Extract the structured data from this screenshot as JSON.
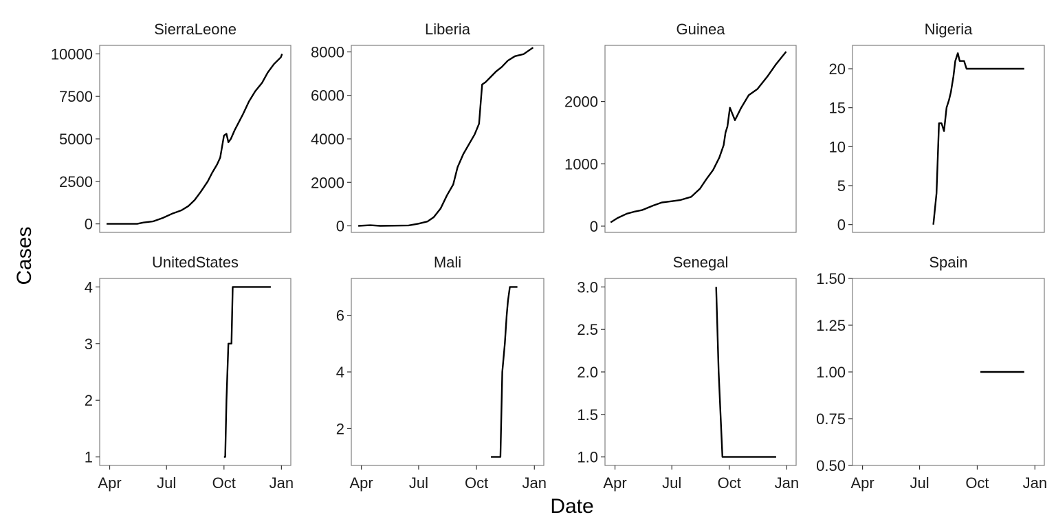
{
  "chart_data": {
    "type": "line",
    "layout": "facet-grid",
    "xlabel": "Date",
    "ylabel": "Cases",
    "x_ticks": [
      "Apr",
      "Jul",
      "Oct",
      "Jan"
    ],
    "x_tick_dates": [
      "2014-04-01",
      "2014-07-01",
      "2014-10-01",
      "2015-01-01"
    ],
    "xlim": [
      "2014-03-16",
      "2015-01-16"
    ],
    "grid": false,
    "legend": "none",
    "line_color": "#000000",
    "panels": [
      {
        "name": "SierraLeone",
        "ylim": [
          -500,
          10500
        ],
        "y_ticks": [
          0,
          2500,
          5000,
          7500,
          10000
        ],
        "y_tick_labels": [
          "0",
          "2500",
          "5000",
          "7500",
          "10000"
        ],
        "x": [
          "2014-03-27",
          "2014-05-15",
          "2014-05-25",
          "2014-06-10",
          "2014-06-25",
          "2014-07-10",
          "2014-07-25",
          "2014-08-05",
          "2014-08-15",
          "2014-08-25",
          "2014-09-05",
          "2014-09-12",
          "2014-09-20",
          "2014-09-25",
          "2014-10-01",
          "2014-10-05",
          "2014-10-08",
          "2014-10-12",
          "2014-10-18",
          "2014-10-25",
          "2014-11-01",
          "2014-11-10",
          "2014-11-20",
          "2014-12-01",
          "2014-12-10",
          "2014-12-20",
          "2014-12-31",
          "2015-01-02"
        ],
        "y": [
          0,
          0,
          80,
          150,
          350,
          600,
          800,
          1050,
          1400,
          1900,
          2500,
          3000,
          3500,
          3900,
          5200,
          5300,
          4800,
          5000,
          5500,
          6000,
          6500,
          7200,
          7800,
          8300,
          8900,
          9400,
          9800,
          10000
        ]
      },
      {
        "name": "Liberia",
        "ylim": [
          -300,
          8300
        ],
        "y_ticks": [
          0,
          2000,
          4000,
          6000,
          8000
        ],
        "y_tick_labels": [
          "0",
          "2000",
          "4000",
          "6000",
          "8000"
        ],
        "x": [
          "2014-03-27",
          "2014-04-15",
          "2014-05-01",
          "2014-06-15",
          "2014-07-01",
          "2014-07-15",
          "2014-07-25",
          "2014-08-05",
          "2014-08-15",
          "2014-08-25",
          "2014-09-01",
          "2014-09-10",
          "2014-09-20",
          "2014-09-28",
          "2014-10-05",
          "2014-10-10",
          "2014-10-15",
          "2014-10-22",
          "2014-11-01",
          "2014-11-10",
          "2014-11-20",
          "2014-12-01",
          "2014-12-15",
          "2014-12-30"
        ],
        "y": [
          0,
          30,
          0,
          20,
          100,
          200,
          400,
          800,
          1400,
          1900,
          2700,
          3300,
          3800,
          4200,
          4700,
          6500,
          6600,
          6800,
          7100,
          7300,
          7600,
          7800,
          7900,
          8200
        ]
      },
      {
        "name": "Guinea",
        "ylim": [
          -100,
          2900
        ],
        "y_ticks": [
          0,
          1000,
          2000
        ],
        "y_tick_labels": [
          "0",
          "1000",
          "2000"
        ],
        "x": [
          "2014-03-25",
          "2014-04-05",
          "2014-04-20",
          "2014-05-01",
          "2014-05-15",
          "2014-06-01",
          "2014-06-15",
          "2014-07-01",
          "2014-07-15",
          "2014-08-01",
          "2014-08-15",
          "2014-08-25",
          "2014-09-05",
          "2014-09-15",
          "2014-09-22",
          "2014-09-25",
          "2014-09-28",
          "2014-10-02",
          "2014-10-10",
          "2014-10-20",
          "2014-11-01",
          "2014-11-15",
          "2014-12-01",
          "2014-12-15",
          "2014-12-31"
        ],
        "y": [
          60,
          130,
          200,
          230,
          260,
          330,
          380,
          400,
          420,
          470,
          600,
          750,
          900,
          1100,
          1300,
          1500,
          1600,
          1900,
          1700,
          1900,
          2100,
          2200,
          2400,
          2600,
          2800
        ]
      },
      {
        "name": "Nigeria",
        "ylim": [
          -1,
          23
        ],
        "y_ticks": [
          0,
          5,
          10,
          15,
          20
        ],
        "y_tick_labels": [
          "0",
          "5",
          "10",
          "15",
          "20"
        ],
        "x": [
          "2014-07-23",
          "2014-07-28",
          "2014-08-01",
          "2014-08-05",
          "2014-08-09",
          "2014-08-13",
          "2014-08-17",
          "2014-08-20",
          "2014-08-24",
          "2014-08-27",
          "2014-08-31",
          "2014-09-03",
          "2014-09-06",
          "2014-09-10",
          "2014-09-14",
          "2014-09-20",
          "2014-10-05",
          "2014-12-15"
        ],
        "y": [
          0,
          4,
          13,
          13,
          12,
          15,
          16,
          17,
          19,
          21,
          22,
          21,
          21,
          21,
          20,
          20,
          20,
          20
        ]
      },
      {
        "name": "UnitedStates",
        "ylim": [
          0.85,
          4.15
        ],
        "y_ticks": [
          1,
          2,
          3,
          4
        ],
        "y_tick_labels": [
          "1",
          "2",
          "3",
          "4"
        ],
        "x": [
          "2014-10-01",
          "2014-10-03",
          "2014-10-05",
          "2014-10-08",
          "2014-10-10",
          "2014-10-13",
          "2014-10-15",
          "2014-12-15"
        ],
        "y": [
          1,
          1,
          2,
          3,
          3,
          3,
          4,
          4
        ]
      },
      {
        "name": "Mali",
        "ylim": [
          0.7,
          7.3
        ],
        "y_ticks": [
          2,
          4,
          6
        ],
        "y_tick_labels": [
          "2",
          "4",
          "6"
        ],
        "x": [
          "2014-10-24",
          "2014-11-08",
          "2014-11-11",
          "2014-11-15",
          "2014-11-18",
          "2014-11-20",
          "2014-11-23",
          "2014-12-05"
        ],
        "y": [
          1,
          1,
          4,
          5,
          6,
          6.5,
          7,
          7
        ]
      },
      {
        "name": "Senegal",
        "ylim": [
          0.9,
          3.1
        ],
        "y_ticks": [
          1.0,
          1.5,
          2.0,
          2.5,
          3.0
        ],
        "y_tick_labels": [
          "1.0",
          "1.5",
          "2.0",
          "2.5",
          "3.0"
        ],
        "x": [
          "2014-09-10",
          "2014-09-14",
          "2014-09-20",
          "2014-12-15"
        ],
        "y": [
          3,
          2,
          1,
          1
        ]
      },
      {
        "name": "Spain",
        "ylim": [
          0.5,
          1.5
        ],
        "y_ticks": [
          0.5,
          0.75,
          1.0,
          1.25,
          1.5
        ],
        "y_tick_labels": [
          "0.50",
          "0.75",
          "1.00",
          "1.25",
          "1.50"
        ],
        "x": [
          "2014-10-06",
          "2014-12-15"
        ],
        "y": [
          1,
          1
        ]
      }
    ]
  }
}
